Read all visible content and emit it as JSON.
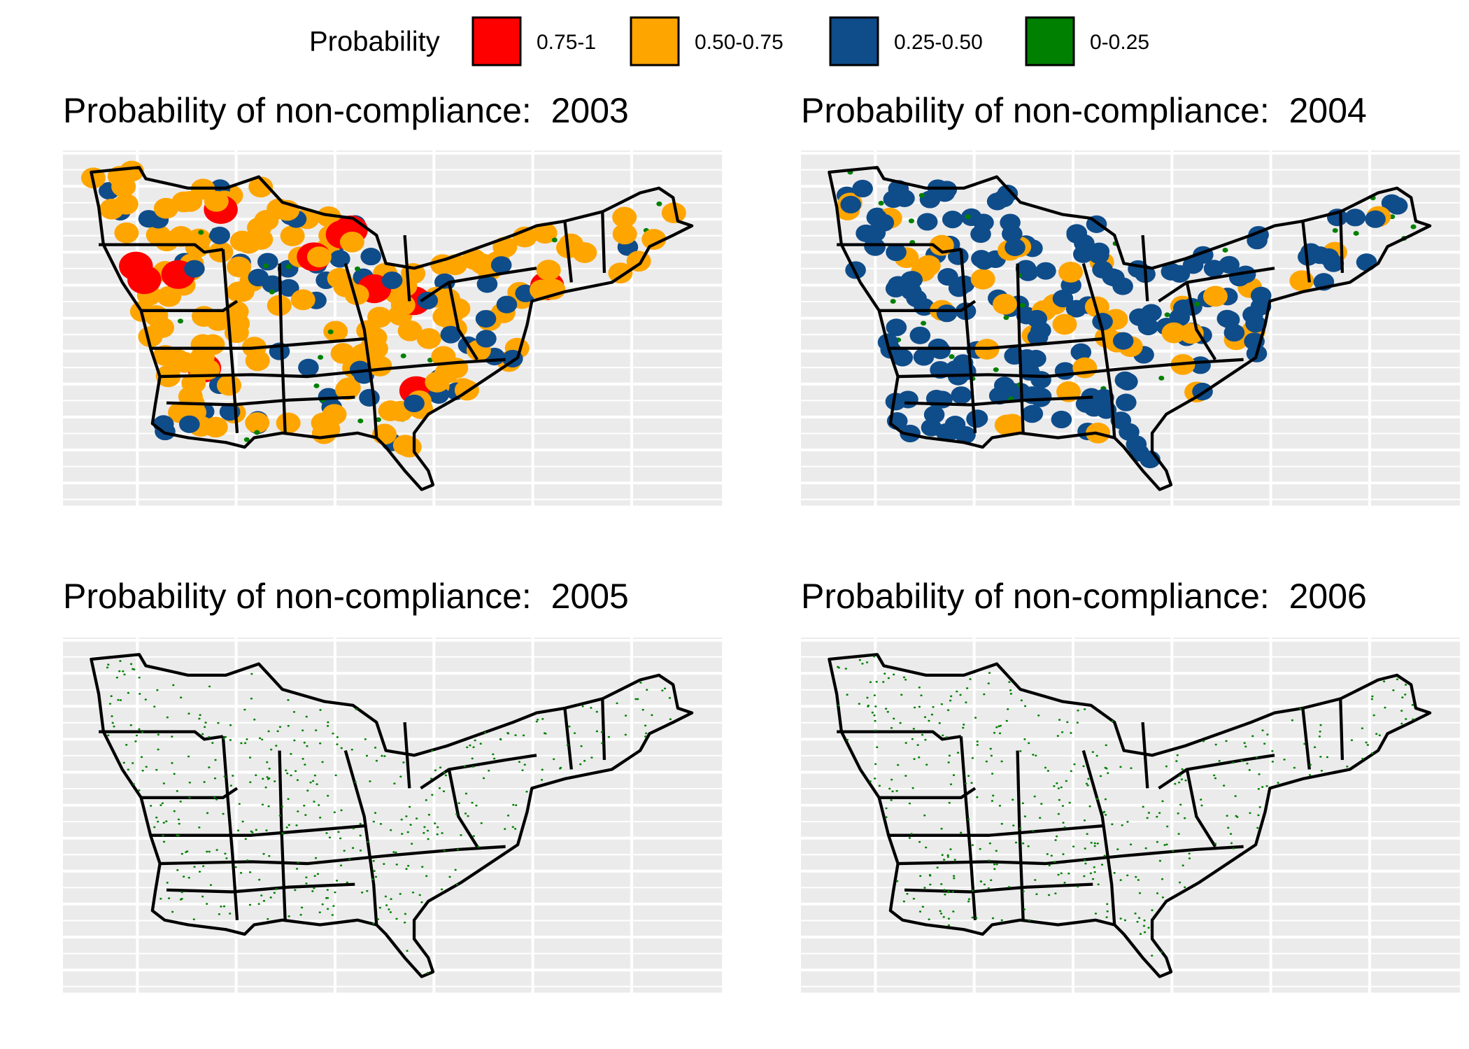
{
  "legend": {
    "title": "Probability",
    "items": [
      {
        "label": "0.75-1",
        "color": "#ff0000"
      },
      {
        "label": "0.50-0.75",
        "color": "#ffa500"
      },
      {
        "label": "0.25-0.50",
        "color": "#0f4c8a"
      },
      {
        "label": "0-0.25",
        "color": "#008000"
      }
    ]
  },
  "panels": [
    {
      "title": "Probability of non-compliance:  2003"
    },
    {
      "title": "Probability of non-compliance:  2004"
    },
    {
      "title": "Probability of non-compliance:  2005"
    },
    {
      "title": "Probability of non-compliance:  2006"
    }
  ]
}
